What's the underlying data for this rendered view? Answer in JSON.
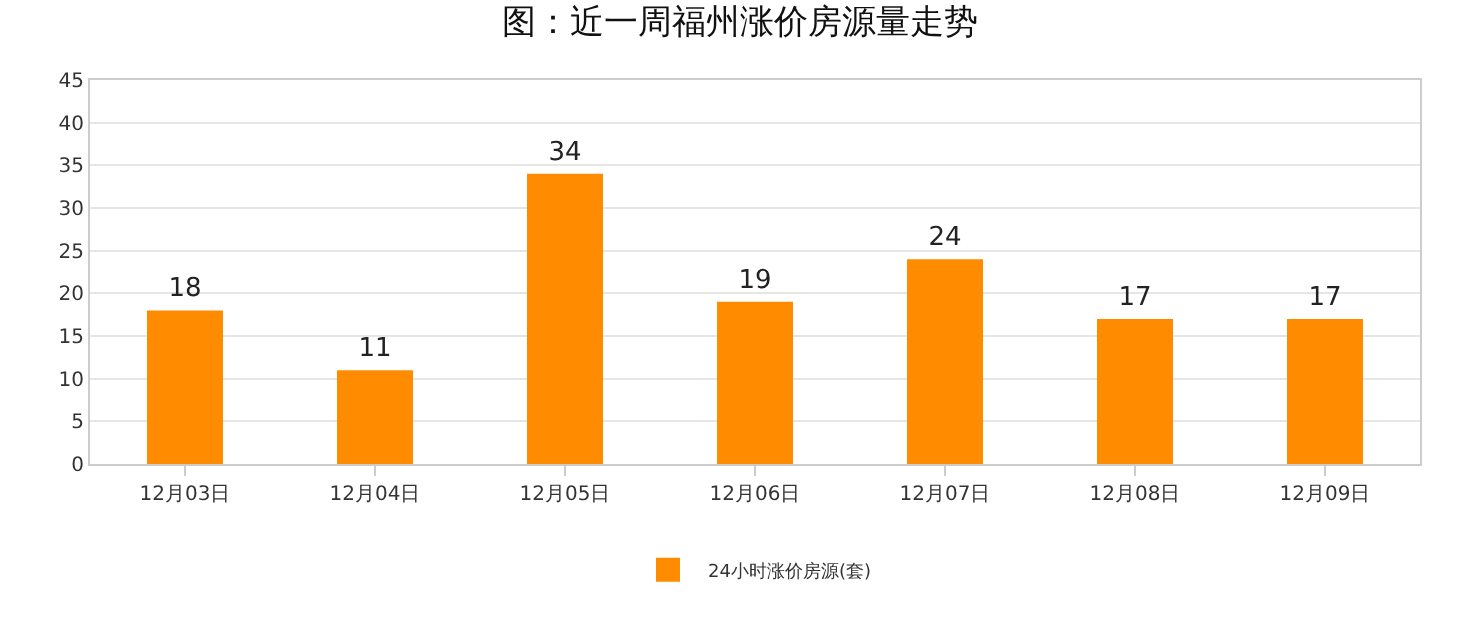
{
  "chart_data": {
    "type": "bar",
    "title": "图：近一周福州涨价房源量走势",
    "categories": [
      "12月03日",
      "12月04日",
      "12月05日",
      "12月06日",
      "12月07日",
      "12月08日",
      "12月09日"
    ],
    "series": [
      {
        "name": "24小时涨价房源(套)",
        "color": "#ff8c00",
        "values": [
          18,
          11,
          34,
          19,
          24,
          17,
          17
        ]
      }
    ],
    "ylim": [
      0,
      45
    ],
    "yticks": [
      0,
      5,
      10,
      15,
      20,
      25,
      30,
      35,
      40,
      45
    ],
    "grid": "y",
    "legend": "bottom",
    "data_labels": true
  }
}
